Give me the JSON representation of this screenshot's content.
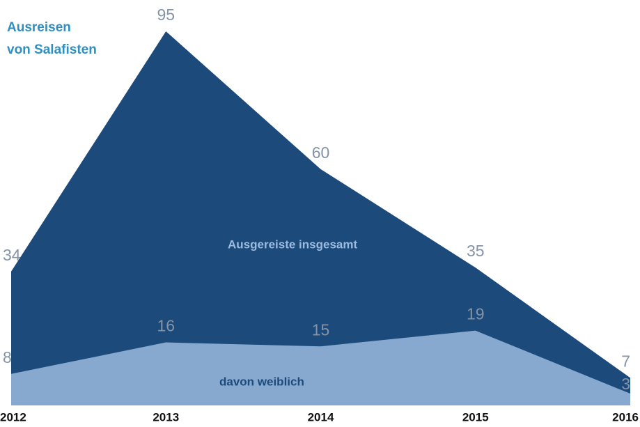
{
  "chart_data": {
    "type": "area",
    "title": [
      "Ausreisen",
      "von Salafisten"
    ],
    "categories": [
      "2012",
      "2013",
      "2014",
      "2015",
      "2016"
    ],
    "series": [
      {
        "name": "Ausgereiste insgesamt",
        "color": "#1b4a7b",
        "label_color": "#9cbbe0",
        "values": [
          34,
          95,
          60,
          35,
          7
        ]
      },
      {
        "name": "davon weiblich",
        "color": "#87a9cf",
        "label_color": "#1b4a7b",
        "values": [
          8,
          16,
          15,
          19,
          3
        ]
      }
    ],
    "ylim": [
      0,
      95
    ]
  }
}
